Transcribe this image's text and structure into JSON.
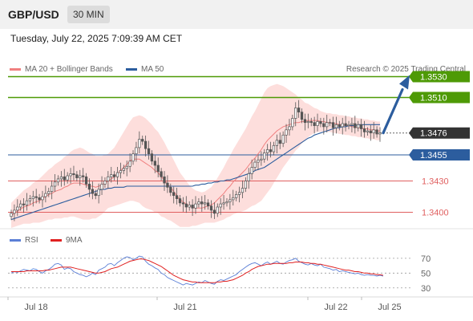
{
  "header": {
    "symbol": "GBP/USD",
    "timeframe": "30 MIN"
  },
  "timestamp": "Tuesday, July 22, 2025 7:09:39 AM CET",
  "legend": {
    "ma20": "MA 20 + Bollinger Bands",
    "ma50": "MA 50",
    "credit": "Research © 2025 Trading Central"
  },
  "rsi_legend": {
    "rsi": "RSI",
    "ma": "9MA"
  },
  "colors": {
    "green": "#4e9a06",
    "blue": "#2c5d9e",
    "red": "#e06060",
    "ma20": "#f08080",
    "band": "#fcd3d0",
    "candle": "#555555",
    "rsi": "#5b7fd6",
    "rsi_ma": "#e02020",
    "current": "#333333"
  },
  "chart_data": [
    {
      "type": "candlestick",
      "title": "",
      "ylim": [
        1.3385,
        1.3545
      ],
      "x_ticks": [
        "Jul 18",
        "Jul 21",
        "Jul 22",
        "Jul 25"
      ],
      "current_price": 1.3476,
      "levels": [
        {
          "value": 1.353,
          "label": "1.3530",
          "kind": "resistance"
        },
        {
          "value": 1.351,
          "label": "1.3510",
          "kind": "resistance"
        },
        {
          "value": 1.3476,
          "label": "1.3476",
          "kind": "current"
        },
        {
          "value": 1.3455,
          "label": "1.3455",
          "kind": "pivot"
        },
        {
          "value": 1.343,
          "label": "1.3430",
          "kind": "support"
        },
        {
          "value": 1.34,
          "label": "1.3400",
          "kind": "support"
        }
      ],
      "close": [
        1.3399,
        1.3402,
        1.3405,
        1.3408,
        1.3407,
        1.3411,
        1.3413,
        1.3415,
        1.3414,
        1.3412,
        1.3415,
        1.3418,
        1.342,
        1.3425,
        1.3429,
        1.3432,
        1.3434,
        1.3431,
        1.3435,
        1.3437,
        1.3436,
        1.3433,
        1.3435,
        1.3434,
        1.3427,
        1.3422,
        1.3418,
        1.3416,
        1.3422,
        1.3427,
        1.343,
        1.3434,
        1.3436,
        1.3434,
        1.3438,
        1.344,
        1.3442,
        1.3444,
        1.3449,
        1.3456,
        1.3462,
        1.347,
        1.3468,
        1.3461,
        1.3456,
        1.3449,
        1.3445,
        1.3439,
        1.3434,
        1.3428,
        1.3424,
        1.3419,
        1.3416,
        1.3413,
        1.3409,
        1.3408,
        1.3405,
        1.3407,
        1.3404,
        1.3408,
        1.341,
        1.3408,
        1.3409,
        1.3406,
        1.3402,
        1.3399,
        1.3405,
        1.3408,
        1.3409,
        1.341,
        1.3412,
        1.3414,
        1.3417,
        1.3419,
        1.3423,
        1.343,
        1.3437,
        1.3443,
        1.3448,
        1.345,
        1.3451,
        1.3457,
        1.346,
        1.3458,
        1.3464,
        1.3469,
        1.3466,
        1.3474,
        1.3479,
        1.3482,
        1.349,
        1.35,
        1.3496,
        1.3489,
        1.3486,
        1.3487,
        1.3486,
        1.3483,
        1.3487,
        1.3485,
        1.3482,
        1.3486,
        1.3486,
        1.3481,
        1.3484,
        1.3482,
        1.3485,
        1.3483,
        1.3484,
        1.3485,
        1.3481,
        1.3484,
        1.348,
        1.3477,
        1.3478,
        1.3476,
        1.3479,
        1.3475,
        1.3476
      ],
      "ma20": [
        1.3397,
        1.3399,
        1.3401,
        1.3403,
        1.3405,
        1.3406,
        1.3407,
        1.3409,
        1.341,
        1.3411,
        1.3413,
        1.3415,
        1.3417,
        1.3418,
        1.342,
        1.3421,
        1.3422,
        1.3424,
        1.3425,
        1.3427,
        1.3428,
        1.3428,
        1.3428,
        1.3427,
        1.3426,
        1.3425,
        1.3425,
        1.3424,
        1.3425,
        1.3426,
        1.3428,
        1.343,
        1.3432,
        1.3434,
        1.3437,
        1.344,
        1.3443,
        1.3446,
        1.3449,
        1.3451,
        1.3451,
        1.3451,
        1.3449,
        1.3447,
        1.3445,
        1.3443,
        1.344,
        1.3438,
        1.3434,
        1.3431,
        1.3427,
        1.3424,
        1.342,
        1.3416,
        1.3412,
        1.341,
        1.3408,
        1.3406,
        1.3405,
        1.3404,
        1.3404,
        1.3404,
        1.3405,
        1.3406,
        1.3407,
        1.3409,
        1.3412,
        1.3415,
        1.3418,
        1.3422,
        1.3425,
        1.3429,
        1.3432,
        1.3435,
        1.3438,
        1.3441,
        1.3445,
        1.3449,
        1.3452,
        1.3456,
        1.346,
        1.3465,
        1.3469,
        1.3472,
        1.3475,
        1.3478,
        1.348,
        1.3482,
        1.3483,
        1.3484,
        1.3485,
        1.3486,
        1.3486,
        1.3487,
        1.3487,
        1.3488,
        1.3488,
        1.3488,
        1.3488,
        1.3487,
        1.3487,
        1.3486,
        1.3486,
        1.3485,
        1.3485,
        1.3484,
        1.3484,
        1.3483,
        1.3483,
        1.3482,
        1.3482,
        1.3481,
        1.3481,
        1.348,
        1.348,
        1.3479,
        1.3479,
        1.3478,
        1.3478
      ],
      "ma50": [
        1.3393,
        1.3394,
        1.3395,
        1.3396,
        1.3397,
        1.3398,
        1.3399,
        1.34,
        1.3401,
        1.3402,
        1.3403,
        1.3404,
        1.3405,
        1.3406,
        1.3407,
        1.3408,
        1.3409,
        1.341,
        1.3411,
        1.3412,
        1.3413,
        1.3414,
        1.3415,
        1.3416,
        1.3417,
        1.3418,
        1.3419,
        1.342,
        1.3421,
        1.3422,
        1.3422,
        1.3423,
        1.3423,
        1.3424,
        1.3424,
        1.3424,
        1.3424,
        1.3425,
        1.3425,
        1.3425,
        1.3425,
        1.3425,
        1.3425,
        1.3425,
        1.3425,
        1.3425,
        1.3425,
        1.3425,
        1.3425,
        1.3425,
        1.3425,
        1.3425,
        1.3425,
        1.3425,
        1.3425,
        1.3425,
        1.3425,
        1.3425,
        1.3425,
        1.3426,
        1.3426,
        1.3427,
        1.3427,
        1.3428,
        1.3428,
        1.3429,
        1.3429,
        1.343,
        1.343,
        1.3431,
        1.3431,
        1.3432,
        1.3433,
        1.3434,
        1.3435,
        1.3436,
        1.3437,
        1.3438,
        1.344,
        1.3441,
        1.3442,
        1.3443,
        1.3445,
        1.3447,
        1.3449,
        1.3451,
        1.3453,
        1.3455,
        1.3457,
        1.3459,
        1.3461,
        1.3463,
        1.3465,
        1.3467,
        1.3469,
        1.3471,
        1.3472,
        1.3474,
        1.3475,
        1.3476,
        1.3477,
        1.3478,
        1.3479,
        1.348,
        1.3481,
        1.3481,
        1.3482,
        1.3482,
        1.3483,
        1.3483,
        1.3483,
        1.3484,
        1.3484,
        1.3484,
        1.3484,
        1.3484,
        1.3484,
        1.3484,
        1.3484
      ],
      "band_width": [
        0.0012,
        0.0013,
        0.0014,
        0.0015,
        0.0016,
        0.0017,
        0.0018,
        0.0019,
        0.002,
        0.0021,
        0.0022,
        0.0023,
        0.0024,
        0.0025,
        0.0026,
        0.0027,
        0.0028,
        0.0029,
        0.003,
        0.0031,
        0.0032,
        0.0033,
        0.0034,
        0.0034,
        0.0033,
        0.0032,
        0.0031,
        0.003,
        0.0029,
        0.0028,
        0.0027,
        0.0026,
        0.0027,
        0.0028,
        0.003,
        0.0032,
        0.0034,
        0.0036,
        0.0038,
        0.004,
        0.0041,
        0.0042,
        0.0043,
        0.0043,
        0.0042,
        0.0041,
        0.004,
        0.0039,
        0.0038,
        0.0036,
        0.0034,
        0.0032,
        0.003,
        0.0028,
        0.0026,
        0.0024,
        0.0022,
        0.002,
        0.0018,
        0.0017,
        0.0016,
        0.0015,
        0.0015,
        0.0016,
        0.0017,
        0.0019,
        0.0021,
        0.0023,
        0.0025,
        0.0027,
        0.0029,
        0.0031,
        0.0033,
        0.0035,
        0.0037,
        0.0039,
        0.0041,
        0.0043,
        0.0045,
        0.0047,
        0.0049,
        0.005,
        0.005,
        0.0049,
        0.0047,
        0.0045,
        0.0042,
        0.0039,
        0.0036,
        0.0033,
        0.003,
        0.0027,
        0.0024,
        0.0021,
        0.0018,
        0.0016,
        0.0014,
        0.0012,
        0.0011,
        0.001,
        0.0009,
        0.0009,
        0.0009,
        0.0009,
        0.0009,
        0.0009,
        0.0009,
        0.0009,
        0.0009,
        0.0009,
        0.0009,
        0.0009,
        0.0009,
        0.0009,
        0.0009,
        0.0009,
        0.0009,
        0.0009,
        0.0009
      ]
    },
    {
      "type": "line",
      "title": "",
      "ylim": [
        20,
        85
      ],
      "y_ticks": [
        70,
        50,
        30
      ],
      "series": [
        {
          "name": "RSI",
          "values": [
            50,
            52,
            51,
            53,
            55,
            54,
            53,
            56,
            55,
            52,
            50,
            53,
            55,
            58,
            62,
            63,
            61,
            55,
            57,
            56,
            52,
            50,
            48,
            47,
            45,
            47,
            50,
            48,
            54,
            56,
            58,
            62,
            63,
            60,
            64,
            67,
            70,
            72,
            71,
            68,
            70,
            73,
            72,
            66,
            62,
            60,
            57,
            55,
            50,
            48,
            44,
            42,
            40,
            38,
            36,
            34,
            36,
            35,
            34,
            36,
            38,
            37,
            40,
            38,
            36,
            35,
            39,
            41,
            40,
            42,
            44,
            46,
            48,
            52,
            55,
            58,
            61,
            63,
            64,
            62,
            60,
            63,
            65,
            62,
            64,
            66,
            63,
            62,
            65,
            67,
            68,
            70,
            66,
            64,
            62,
            61,
            63,
            61,
            60,
            62,
            58,
            57,
            56,
            54,
            55,
            52,
            53,
            52,
            51,
            50,
            49,
            50,
            48,
            47,
            48,
            47,
            47,
            46,
            47,
            46
          ]
        },
        {
          "name": "9MA",
          "values": [
            52,
            52,
            52,
            52,
            52,
            53,
            53,
            53,
            53,
            53,
            53,
            54,
            54,
            55,
            56,
            57,
            58,
            58,
            58,
            58,
            57,
            56,
            55,
            54,
            53,
            52,
            51,
            50,
            50,
            51,
            52,
            54,
            56,
            57,
            58,
            60,
            62,
            64,
            66,
            67,
            68,
            69,
            69,
            68,
            67,
            65,
            63,
            61,
            59,
            56,
            53,
            50,
            47,
            45,
            43,
            41,
            40,
            39,
            38,
            38,
            37,
            37,
            37,
            37,
            37,
            37,
            38,
            38,
            39,
            39,
            40,
            41,
            43,
            45,
            47,
            50,
            52,
            55,
            57,
            59,
            60,
            61,
            62,
            62,
            63,
            63,
            63,
            63,
            63,
            64,
            64,
            65,
            65,
            65,
            64,
            64,
            63,
            63,
            62,
            62,
            61,
            60,
            59,
            58,
            57,
            56,
            55,
            54,
            54,
            53,
            52,
            52,
            51,
            50,
            50,
            49,
            49,
            48,
            48,
            47
          ]
        }
      ]
    }
  ]
}
